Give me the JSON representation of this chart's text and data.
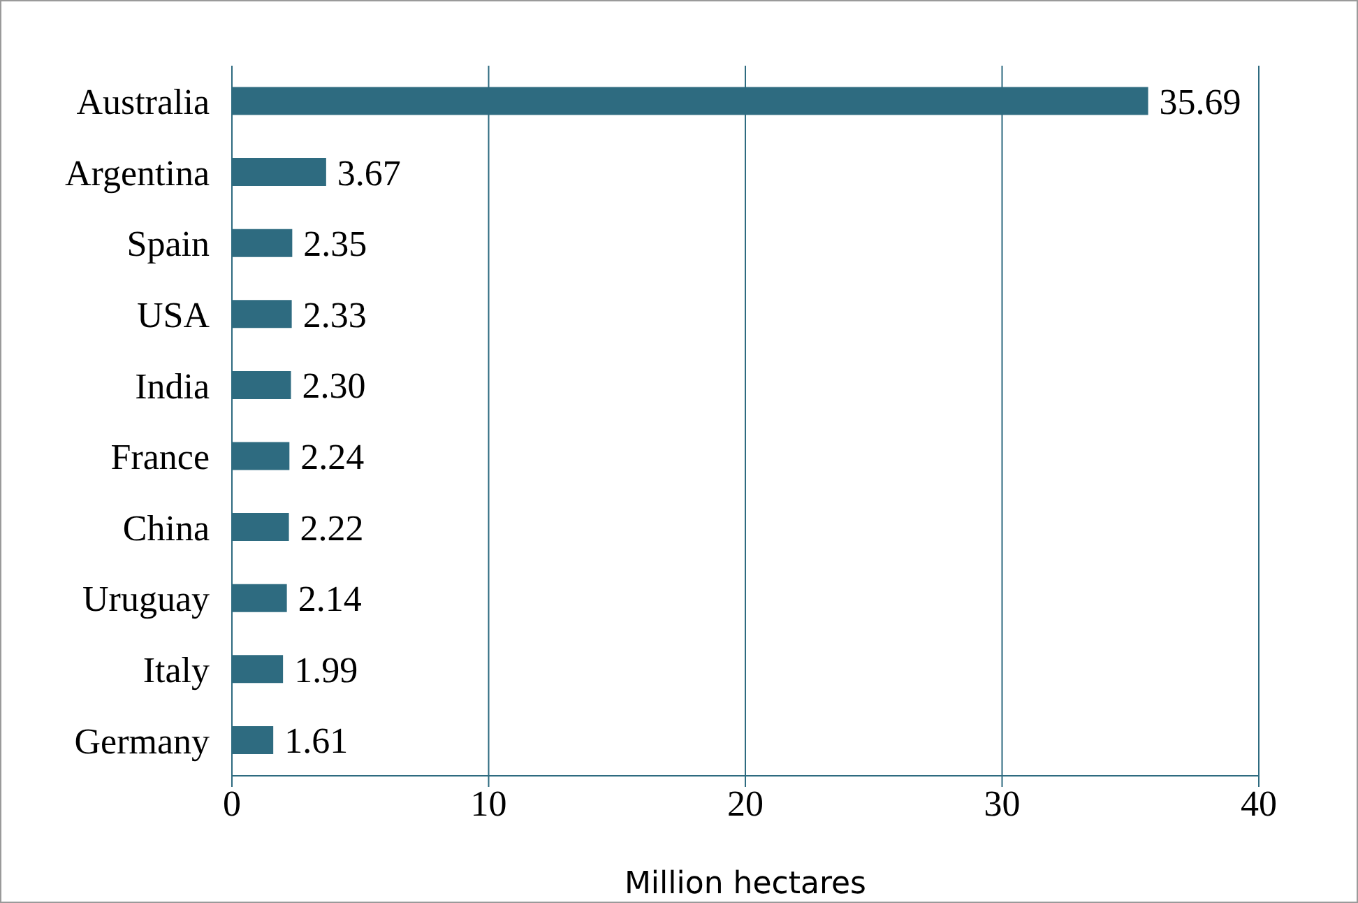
{
  "chart_data": {
    "type": "bar",
    "orientation": "horizontal",
    "xlabel": "Million hectares",
    "categories": [
      "Australia",
      "Argentina",
      "Spain",
      "USA",
      "India",
      "France",
      "China",
      "Uruguay",
      "Italy",
      "Germany"
    ],
    "values": [
      35.69,
      3.67,
      2.35,
      2.33,
      2.3,
      2.24,
      2.22,
      2.14,
      1.99,
      1.61
    ],
    "value_labels": [
      "35.69",
      "3.67",
      "2.35",
      "2.33",
      "2.30",
      "2.24",
      "2.22",
      "2.14",
      "1.99",
      "1.61"
    ],
    "color": "#2e6b80",
    "xlim": [
      0,
      40
    ],
    "xticks": [
      0,
      10,
      20,
      30,
      40
    ],
    "grid": "x",
    "legend": false
  }
}
